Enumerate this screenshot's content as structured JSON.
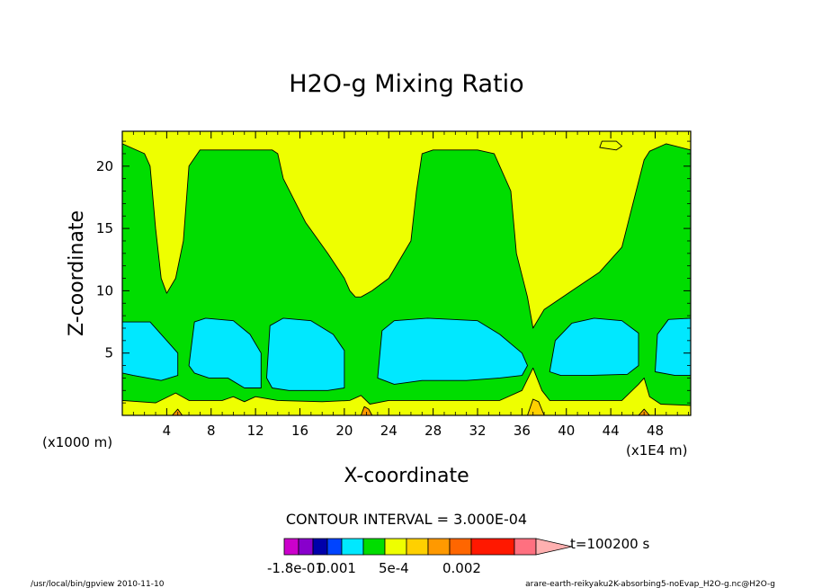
{
  "chart_data": {
    "type": "heatmap",
    "plot_kind": "filled contour",
    "title": "H2O-g Mixing Ratio",
    "xlabel": "X-coordinate",
    "ylabel": "Z-coordinate",
    "x_unit_note": "(x1E4 m)",
    "y_unit_note": "(x1000 m)",
    "xlim": [
      0,
      51.2
    ],
    "ylim": [
      0,
      22.8
    ],
    "x_ticks": [
      "4",
      "8",
      "12",
      "16",
      "20",
      "24",
      "28",
      "32",
      "36",
      "40",
      "44",
      "48"
    ],
    "y_ticks": [
      "5",
      "10",
      "15",
      "20"
    ],
    "contour_interval_text": "CONTOUR INTERVAL = 3.000E-04",
    "time_text": "t=100200 s",
    "colorbar_labels": [
      "-1.8e-01",
      "0.001",
      "5e-4",
      "0.002"
    ],
    "colors": {
      "magenta": "#cc00cc",
      "purple": "#8800cc",
      "darkblue": "#0000aa",
      "blue": "#0044ff",
      "cyan": "#00e8ff",
      "green": "#00dd00",
      "yellow": "#eeff00",
      "gold": "#ffd000",
      "orange": "#ff9900",
      "darkorange": "#ff6600",
      "red": "#ff1800",
      "pink": "#ff7080",
      "lightpink": "#ffb0b0"
    },
    "regions": [
      {
        "level": "green",
        "boundary": [
          [
            0,
            0.2
          ],
          [
            51.2,
            0.2
          ],
          [
            51.2,
            21.3
          ],
          [
            49,
            21.8
          ],
          [
            47.5,
            21.2
          ],
          [
            47,
            20.5
          ],
          [
            46,
            17
          ],
          [
            45,
            13.5
          ],
          [
            43,
            11.5
          ],
          [
            40.5,
            10
          ],
          [
            38,
            8.5
          ],
          [
            37,
            7
          ],
          [
            36.5,
            9.5
          ],
          [
            35.5,
            13
          ],
          [
            35,
            18
          ],
          [
            33.5,
            21
          ],
          [
            32,
            21.3
          ],
          [
            28,
            21.3
          ],
          [
            27,
            21
          ],
          [
            26.5,
            18
          ],
          [
            26,
            14
          ],
          [
            24,
            11
          ],
          [
            22.5,
            10
          ],
          [
            21.5,
            9.5
          ],
          [
            21,
            9.5
          ],
          [
            20.5,
            10
          ],
          [
            20,
            11
          ],
          [
            18.5,
            13
          ],
          [
            16.5,
            15.5
          ],
          [
            14.5,
            19
          ],
          [
            14,
            21
          ],
          [
            13.5,
            21.3
          ],
          [
            7,
            21.3
          ],
          [
            6,
            20
          ],
          [
            5.5,
            14
          ],
          [
            4.8,
            11
          ],
          [
            4,
            9.8
          ],
          [
            3.5,
            11
          ],
          [
            3,
            15
          ],
          [
            2.5,
            20
          ],
          [
            2,
            21
          ],
          [
            1,
            21.4
          ],
          [
            0,
            21.8
          ]
        ]
      },
      {
        "level": "yellow",
        "boundary": [
          [
            43,
            21.5
          ],
          [
            44.5,
            21.3
          ],
          [
            45,
            21.6
          ],
          [
            44.5,
            22
          ],
          [
            43.2,
            22
          ]
        ]
      },
      {
        "level": "cyan",
        "boundary": [
          [
            0,
            7.5
          ],
          [
            2.5,
            7.5
          ],
          [
            4,
            6
          ],
          [
            5,
            5
          ],
          [
            5,
            3.2
          ],
          [
            3.5,
            2.8
          ],
          [
            1,
            3.2
          ],
          [
            0,
            3.4
          ]
        ]
      },
      {
        "level": "cyan",
        "boundary": [
          [
            6,
            4
          ],
          [
            6.5,
            7.5
          ],
          [
            7.5,
            7.8
          ],
          [
            10,
            7.6
          ],
          [
            11.5,
            6.5
          ],
          [
            12.5,
            5
          ],
          [
            12.5,
            2.2
          ],
          [
            11,
            2.2
          ],
          [
            9.5,
            3
          ],
          [
            7.8,
            3
          ],
          [
            6.5,
            3.4
          ]
        ]
      },
      {
        "level": "cyan",
        "boundary": [
          [
            13,
            3
          ],
          [
            13.3,
            7.2
          ],
          [
            14.5,
            7.8
          ],
          [
            17,
            7.6
          ],
          [
            19,
            6.5
          ],
          [
            20,
            5.2
          ],
          [
            20,
            2.2
          ],
          [
            18.5,
            2
          ],
          [
            15,
            2
          ],
          [
            13.5,
            2.2
          ]
        ]
      },
      {
        "level": "cyan",
        "boundary": [
          [
            23,
            3
          ],
          [
            23.4,
            6.8
          ],
          [
            24.5,
            7.6
          ],
          [
            27.5,
            7.8
          ],
          [
            32,
            7.6
          ],
          [
            34,
            6.5
          ],
          [
            36,
            5
          ],
          [
            36.5,
            4
          ],
          [
            36,
            3.2
          ],
          [
            34,
            3
          ],
          [
            31,
            2.8
          ],
          [
            27,
            2.8
          ],
          [
            24.5,
            2.5
          ]
        ]
      },
      {
        "level": "cyan",
        "boundary": [
          [
            38.5,
            3.5
          ],
          [
            39,
            6
          ],
          [
            40.5,
            7.4
          ],
          [
            42.5,
            7.8
          ],
          [
            45,
            7.6
          ],
          [
            46.5,
            6.6
          ],
          [
            46.5,
            4
          ],
          [
            45.5,
            3.3
          ],
          [
            42,
            3.2
          ],
          [
            39.5,
            3.2
          ]
        ]
      },
      {
        "level": "cyan",
        "boundary": [
          [
            48,
            3.5
          ],
          [
            48.2,
            6.5
          ],
          [
            49.2,
            7.7
          ],
          [
            51.2,
            7.8
          ],
          [
            51.2,
            3.2
          ],
          [
            49.8,
            3.2
          ]
        ]
      },
      {
        "level": "yellow",
        "boundary": [
          [
            0,
            0
          ],
          [
            0,
            1.2
          ],
          [
            3,
            1.0
          ],
          [
            4.8,
            1.8
          ],
          [
            6,
            1.2
          ],
          [
            9,
            1.2
          ],
          [
            10,
            1.5
          ],
          [
            11,
            1.1
          ],
          [
            12,
            1.5
          ],
          [
            14,
            1.2
          ],
          [
            18,
            1.1
          ],
          [
            20.5,
            1.2
          ],
          [
            21.5,
            1.6
          ],
          [
            22.3,
            0.9
          ],
          [
            24,
            1.2
          ],
          [
            34,
            1.2
          ],
          [
            36,
            2
          ],
          [
            37,
            3.8
          ],
          [
            37.8,
            2
          ],
          [
            38.5,
            1.2
          ],
          [
            45,
            1.2
          ],
          [
            46.5,
            2.5
          ],
          [
            47,
            3
          ],
          [
            47.5,
            1.5
          ],
          [
            48.5,
            0.9
          ],
          [
            51.2,
            0.8
          ],
          [
            51.2,
            0
          ]
        ]
      },
      {
        "level": "gold",
        "boundary": [
          [
            36.5,
            0
          ],
          [
            37,
            1.3
          ],
          [
            37.5,
            1.1
          ],
          [
            38,
            0
          ]
        ]
      },
      {
        "level": "orange",
        "boundary": [
          [
            21.5,
            0
          ],
          [
            21.8,
            0.7
          ],
          [
            22.2,
            0.5
          ],
          [
            22.5,
            0
          ]
        ]
      },
      {
        "level": "orange",
        "boundary": [
          [
            4.5,
            0
          ],
          [
            5,
            0.5
          ],
          [
            5.4,
            0
          ]
        ]
      },
      {
        "level": "orange",
        "boundary": [
          [
            46.5,
            0
          ],
          [
            47,
            0.5
          ],
          [
            47.5,
            0
          ]
        ]
      }
    ]
  },
  "footer": {
    "left": "/usr/local/bin/gpview  2010-11-10",
    "right": "arare-earth-reikyaku2K-absorbing5-noEvap_H2O-g.nc@H2O-g"
  }
}
